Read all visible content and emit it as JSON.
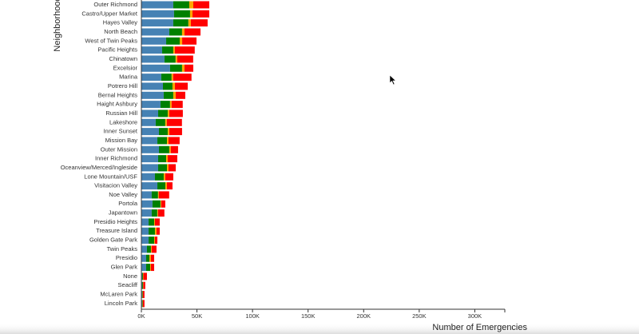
{
  "chart_data": {
    "type": "stacked-bar",
    "y_label": "Neighborhood",
    "x_label": "Number of Emergencies",
    "categories": [
      "Outer Richmond",
      "Castro/Upper Market",
      "Hayes Valley",
      "North Beach",
      "West of Twin Peaks",
      "Pacific Heights",
      "Chinatown",
      "Excelsior",
      "Marina",
      "Potrero Hill",
      "Bernal Heights",
      "Haight Ashbury",
      "Russian Hill",
      "Lakeshore",
      "Inner Sunset",
      "Mission Bay",
      "Outer Mission",
      "Inner Richmond",
      "Oceanview/Merced/Ingleside",
      "Lone Mountain/USF",
      "Visitacion Valley",
      "Noe Valley",
      "Portola",
      "Japantown",
      "Presidio Heights",
      "Treasure Island",
      "Golden Gate Park",
      "Twin Peaks",
      "Presidio",
      "Glen Park",
      "None",
      "Seacliff",
      "McLaren Park",
      "Lincoln Park"
    ],
    "series": [
      {
        "color": "#4682b4",
        "values": [
          28700,
          29400,
          28700,
          25100,
          22300,
          18700,
          20800,
          25800,
          17900,
          19400,
          20100,
          17200,
          15100,
          12900,
          15800,
          14400,
          15800,
          15100,
          15100,
          12200,
          14400,
          9300,
          10000,
          9300,
          6500,
          6500,
          6500,
          5000,
          4300,
          4300,
          700,
          700,
          700,
          700
        ]
      },
      {
        "color": "#008000",
        "values": [
          14400,
          14400,
          13600,
          11500,
          12200,
          10000,
          10000,
          10800,
          9300,
          8600,
          8600,
          8600,
          8600,
          8600,
          7900,
          8600,
          9300,
          7200,
          7900,
          7900,
          7200,
          5700,
          7200,
          5000,
          5000,
          5700,
          5000,
          3600,
          2900,
          3600,
          700,
          700,
          400,
          400
        ]
      },
      {
        "color": "#ffa500",
        "values": [
          3600,
          2200,
          2200,
          2200,
          2200,
          1400,
          1400,
          2200,
          1400,
          2200,
          2200,
          1400,
          1400,
          1400,
          1400,
          1400,
          1400,
          1400,
          1400,
          1400,
          1400,
          700,
          700,
          700,
          700,
          1400,
          700,
          700,
          1400,
          700,
          400,
          300,
          300,
          300
        ]
      },
      {
        "color": "#ff0000",
        "values": [
          14400,
          15100,
          15100,
          14400,
          12900,
          17900,
          14400,
          7900,
          16500,
          11500,
          8600,
          10000,
          12200,
          13600,
          11500,
          10000,
          6500,
          8600,
          6500,
          7200,
          5000,
          9300,
          3600,
          5700,
          4300,
          2900,
          2200,
          4300,
          2900,
          2900,
          3200,
          1800,
          1400,
          1400
        ]
      }
    ],
    "xlim": [
      0,
      327000
    ],
    "xticks": [
      {
        "value": 0,
        "label": "0K"
      },
      {
        "value": 50000,
        "label": "50K"
      },
      {
        "value": 100000,
        "label": "100K"
      },
      {
        "value": 150000,
        "label": "150K"
      },
      {
        "value": 200000,
        "label": "200K"
      },
      {
        "value": 250000,
        "label": "250K"
      },
      {
        "value": 300000,
        "label": "300K"
      }
    ]
  }
}
